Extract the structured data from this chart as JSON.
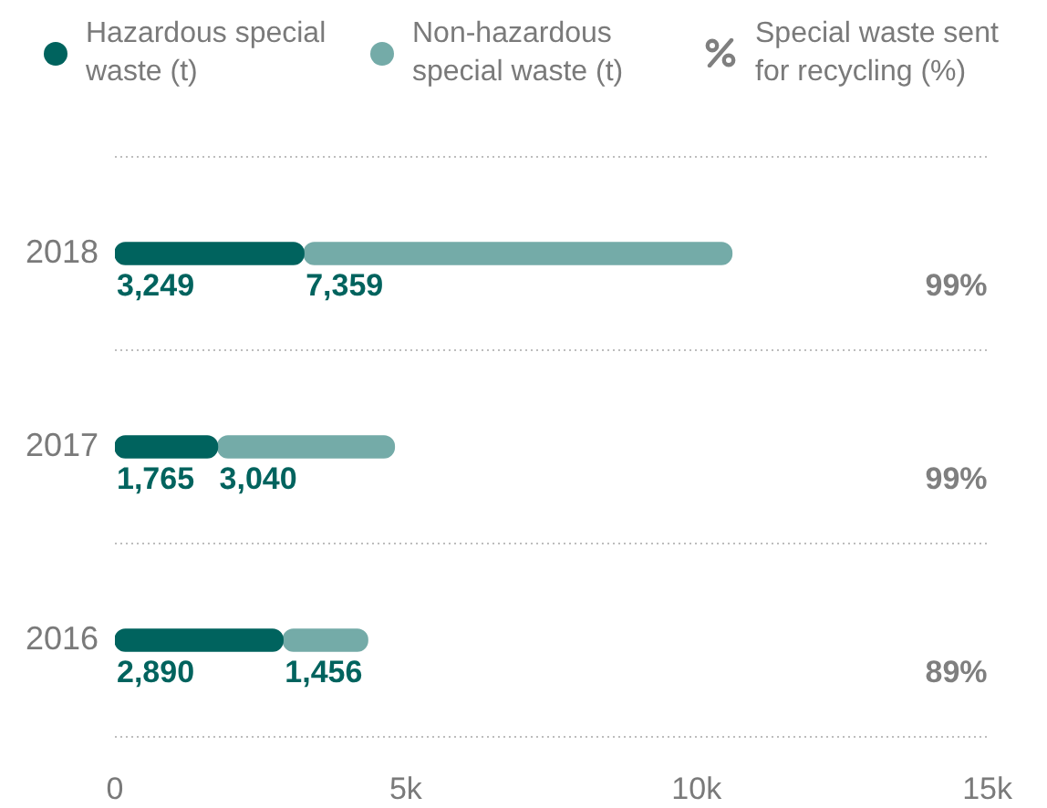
{
  "chart_data": {
    "type": "bar",
    "orientation": "horizontal",
    "stacked": true,
    "categories": [
      "2018",
      "2017",
      "2016"
    ],
    "series": [
      {
        "name": "Hazardous special waste (t)",
        "color": "#00635e",
        "values": [
          3249,
          1765,
          2890
        ],
        "value_labels": [
          "3,249",
          "1,765",
          "2,890"
        ]
      },
      {
        "name": "Non-hazardous special waste (t)",
        "color": "#74aba8",
        "values": [
          7359,
          3040,
          1456
        ],
        "value_labels": [
          "7,359",
          "3,040",
          "1,456"
        ]
      }
    ],
    "xlim": [
      0,
      15000
    ],
    "xticks": [
      0,
      {
        "value": 5000,
        "label": "5k"
      },
      {
        "value": 10000,
        "label": "10k"
      },
      {
        "value": 15000,
        "label": "15k"
      }
    ],
    "annotations": [
      "Special waste sent for recycling (%)",
      "99%",
      "99%",
      "89%"
    ],
    "grid": "y",
    "legend": "top"
  }
}
